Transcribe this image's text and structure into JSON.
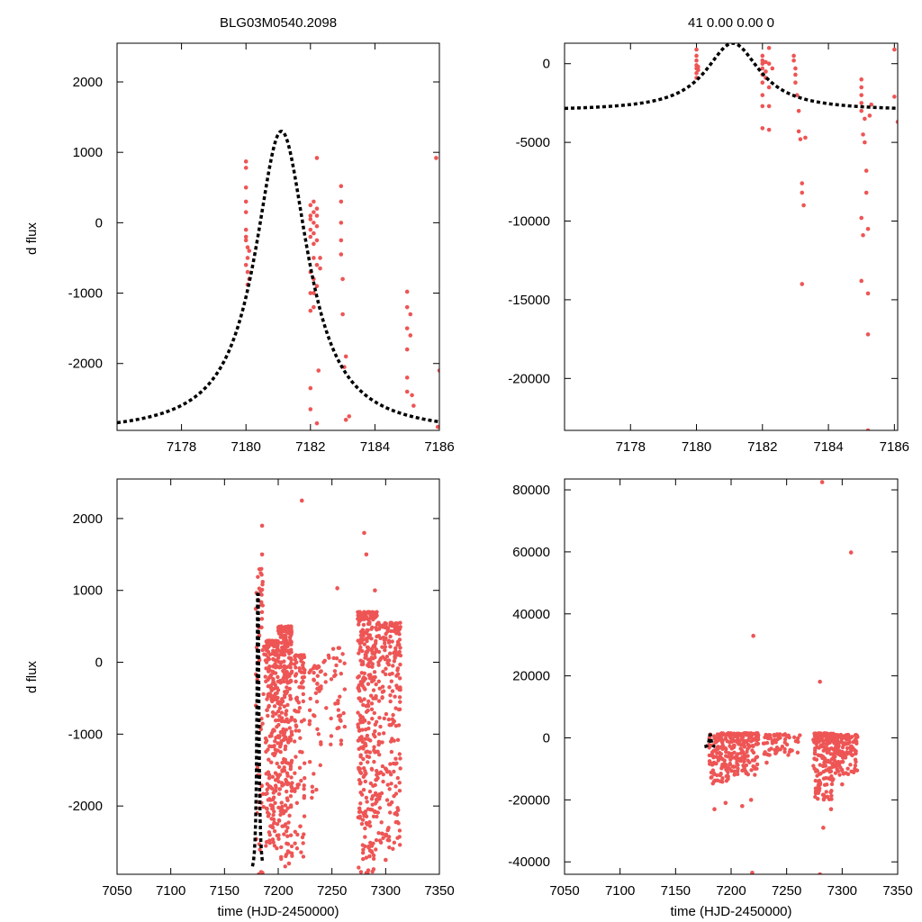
{
  "figure_title": "BLG03M0540.2098",
  "fit_summary": "41  0.00  0.00  0",
  "colors": {
    "data": "#ee5555",
    "model": "#000000",
    "axes": "#000000",
    "background": "#ffffff"
  },
  "model": {
    "type": "point-lens",
    "t0": 7181.1,
    "peak": 1300,
    "baseline": -3000,
    "tE": 1.0
  },
  "chart_data": [
    {
      "id": "top-left",
      "type": "scatter",
      "title": "BLG03M0540.2098",
      "xlabel": "",
      "ylabel": "d flux",
      "xlim": [
        7176,
        7186
      ],
      "ylim": [
        -2950,
        2550
      ],
      "xticks": [
        7178,
        7180,
        7182,
        7184,
        7186
      ],
      "yticks": [
        -2000,
        -1000,
        0,
        1000,
        2000
      ],
      "series": [
        {
          "name": "data",
          "kind": "points",
          "points": [
            [
              7180.0,
              870
            ],
            [
              7180.0,
              780
            ],
            [
              7180.0,
              500
            ],
            [
              7180.0,
              300
            ],
            [
              7180.0,
              150
            ],
            [
              7180.0,
              -100
            ],
            [
              7180.0,
              -200
            ],
            [
              7180.0,
              -250
            ],
            [
              7180.0,
              -600
            ],
            [
              7180.05,
              -880
            ],
            [
              7180.05,
              -350
            ],
            [
              7180.05,
              -500
            ],
            [
              7180.05,
              -700
            ],
            [
              7180.1,
              -400
            ],
            [
              7180.1,
              -800
            ],
            [
              7182.0,
              250
            ],
            [
              7182.0,
              100
            ],
            [
              7182.0,
              50
            ],
            [
              7182.0,
              -100
            ],
            [
              7182.0,
              -200
            ],
            [
              7182.0,
              -700
            ],
            [
              7182.0,
              -1000
            ],
            [
              7182.0,
              -1250
            ],
            [
              7182.0,
              -2350
            ],
            [
              7182.0,
              -2650
            ],
            [
              7182.1,
              300
            ],
            [
              7182.1,
              150
            ],
            [
              7182.1,
              0
            ],
            [
              7182.1,
              -150
            ],
            [
              7182.1,
              -300
            ],
            [
              7182.1,
              -500
            ],
            [
              7182.1,
              -800
            ],
            [
              7182.1,
              -1000
            ],
            [
              7182.1,
              -1200
            ],
            [
              7182.2,
              200
            ],
            [
              7182.2,
              100
            ],
            [
              7182.2,
              -50
            ],
            [
              7182.2,
              -250
            ],
            [
              7182.2,
              -600
            ],
            [
              7182.2,
              -900
            ],
            [
              7182.2,
              920
            ],
            [
              7182.2,
              -2850
            ],
            [
              7182.25,
              -2100
            ],
            [
              7182.3,
              -500
            ],
            [
              7182.3,
              -650
            ],
            [
              7182.95,
              520
            ],
            [
              7182.95,
              300
            ],
            [
              7182.95,
              0
            ],
            [
              7182.95,
              -250
            ],
            [
              7182.95,
              -450
            ],
            [
              7183.0,
              -800
            ],
            [
              7183.0,
              -1300
            ],
            [
              7183.05,
              -2050
            ],
            [
              7183.1,
              -1900
            ],
            [
              7183.1,
              -2800
            ],
            [
              7183.2,
              -2750
            ],
            [
              7185.0,
              -980
            ],
            [
              7185.0,
              -1200
            ],
            [
              7185.0,
              -1500
            ],
            [
              7185.0,
              -1800
            ],
            [
              7185.0,
              -2200
            ],
            [
              7185.0,
              -2400
            ],
            [
              7185.1,
              -1300
            ],
            [
              7185.1,
              -1600
            ],
            [
              7185.15,
              -2450
            ],
            [
              7185.2,
              -2600
            ],
            [
              7185.9,
              920
            ],
            [
              7186.0,
              -2100
            ],
            [
              7185.95,
              -2900
            ]
          ]
        },
        {
          "name": "model",
          "kind": "curve"
        }
      ]
    },
    {
      "id": "top-right",
      "type": "scatter",
      "title": "41  0.00  0.00  0",
      "xlabel": "",
      "ylabel": "",
      "xlim": [
        7176,
        7186.1
      ],
      "ylim": [
        -23300,
        1300
      ],
      "xticks": [
        7178,
        7180,
        7182,
        7184,
        7186
      ],
      "yticks": [
        -20000,
        -15000,
        -10000,
        -5000,
        0
      ],
      "series": [
        {
          "name": "data",
          "kind": "points",
          "points": [
            [
              7180.0,
              900
            ],
            [
              7180.0,
              500
            ],
            [
              7180.0,
              200
            ],
            [
              7180.0,
              -100
            ],
            [
              7180.0,
              -300
            ],
            [
              7180.0,
              -600
            ],
            [
              7180.0,
              -900
            ],
            [
              7180.05,
              -200
            ],
            [
              7180.05,
              -400
            ],
            [
              7182.0,
              500
            ],
            [
              7182.0,
              200
            ],
            [
              7182.0,
              0
            ],
            [
              7182.0,
              -300
            ],
            [
              7182.0,
              -700
            ],
            [
              7182.0,
              -1200
            ],
            [
              7182.0,
              -2000
            ],
            [
              7182.0,
              -2700
            ],
            [
              7182.0,
              -4100
            ],
            [
              7182.1,
              100
            ],
            [
              7182.1,
              -500
            ],
            [
              7182.1,
              -900
            ],
            [
              7182.2,
              1000
            ],
            [
              7182.2,
              0
            ],
            [
              7182.2,
              -1500
            ],
            [
              7182.2,
              -2700
            ],
            [
              7182.2,
              -4200
            ],
            [
              7182.3,
              -300
            ],
            [
              7182.95,
              500
            ],
            [
              7182.95,
              200
            ],
            [
              7183.0,
              -300
            ],
            [
              7183.0,
              -700
            ],
            [
              7183.0,
              -1200
            ],
            [
              7183.05,
              -2000
            ],
            [
              7183.1,
              -3000
            ],
            [
              7183.1,
              -4300
            ],
            [
              7183.15,
              -4800
            ],
            [
              7183.2,
              -7600
            ],
            [
              7183.2,
              -8200
            ],
            [
              7183.25,
              -9000
            ],
            [
              7183.2,
              -14000
            ],
            [
              7183.3,
              -4700
            ],
            [
              7185.0,
              -1000
            ],
            [
              7185.0,
              -1500
            ],
            [
              7185.0,
              -2000
            ],
            [
              7185.0,
              -2500
            ],
            [
              7185.0,
              -3000
            ],
            [
              7185.05,
              -4500
            ],
            [
              7185.0,
              -9800
            ],
            [
              7185.05,
              -10900
            ],
            [
              7185.0,
              -13800
            ],
            [
              7185.1,
              -3500
            ],
            [
              7185.1,
              -5000
            ],
            [
              7185.15,
              -6800
            ],
            [
              7185.15,
              -8200
            ],
            [
              7185.2,
              -10500
            ],
            [
              7185.2,
              -14600
            ],
            [
              7185.2,
              -17200
            ],
            [
              7185.2,
              -23300
            ],
            [
              7185.25,
              -3300
            ],
            [
              7185.3,
              -2600
            ],
            [
              7186.0,
              900
            ],
            [
              7186.0,
              -2100
            ],
            [
              7186.1,
              -3700
            ]
          ]
        },
        {
          "name": "model",
          "kind": "curve"
        }
      ]
    },
    {
      "id": "bottom-left",
      "type": "scatter",
      "title": "",
      "xlabel": "time (HJD-2450000)",
      "ylabel": "d flux",
      "xlim": [
        7050,
        7350
      ],
      "ylim": [
        -2950,
        2550
      ],
      "xticks": [
        7050,
        7100,
        7150,
        7200,
        7250,
        7300,
        7350
      ],
      "yticks": [
        -2000,
        -1000,
        0,
        1000,
        2000
      ],
      "series": [
        {
          "name": "data",
          "kind": "points",
          "points": [
            [
              7185,
              1900
            ],
            [
              7185,
              1500
            ],
            [
              7222,
              2250
            ],
            [
              7280,
              1800
            ],
            [
              7282,
              1500
            ],
            [
              7255,
              1030
            ],
            [
              7290,
              1000
            ],
            [
              7182,
              -2950
            ],
            [
              7195,
              -2300
            ],
            [
              7210,
              -2800
            ],
            [
              7232,
              -1800
            ],
            [
              7285,
              -2700
            ],
            [
              7300,
              -2750
            ]
          ]
        },
        {
          "name": "model",
          "kind": "curve"
        }
      ],
      "clusters": [
        {
          "xmin": 7179,
          "xmax": 7187,
          "ymin": -2950,
          "ymax": 1300,
          "n": 60
        },
        {
          "xmin": 7188,
          "xmax": 7200,
          "ymin": -2600,
          "ymax": 300,
          "n": 220
        },
        {
          "xmin": 7200,
          "xmax": 7213,
          "ymin": -2900,
          "ymax": 500,
          "n": 280
        },
        {
          "xmin": 7215,
          "xmax": 7225,
          "ymin": -2800,
          "ymax": 100,
          "n": 90
        },
        {
          "xmin": 7228,
          "xmax": 7240,
          "ymin": -1900,
          "ymax": -50,
          "n": 40
        },
        {
          "xmin": 7242,
          "xmax": 7262,
          "ymin": -1400,
          "ymax": 200,
          "n": 40
        },
        {
          "xmin": 7274,
          "xmax": 7292,
          "ymin": -2950,
          "ymax": 700,
          "n": 330
        },
        {
          "xmin": 7292,
          "xmax": 7314,
          "ymin": -2600,
          "ymax": 550,
          "n": 230
        }
      ]
    },
    {
      "id": "bottom-right",
      "type": "scatter",
      "title": "",
      "xlabel": "time (HJD-2450000)",
      "ylabel": "",
      "xlim": [
        7050,
        7350
      ],
      "ylim": [
        -44000,
        83500
      ],
      "xticks": [
        7050,
        7100,
        7150,
        7200,
        7250,
        7300,
        7350
      ],
      "yticks": [
        -40000,
        -20000,
        0,
        20000,
        40000,
        60000,
        80000
      ],
      "series": [
        {
          "name": "data",
          "kind": "points",
          "points": [
            [
              7282,
              82500
            ],
            [
              7308,
              59800
            ],
            [
              7280,
              18100
            ],
            [
              7220,
              32900
            ],
            [
              7219,
              -43500
            ],
            [
              7283,
              -29000
            ],
            [
              7280,
              -44000
            ],
            [
              7185,
              -23000
            ],
            [
              7195,
              -21000
            ],
            [
              7210,
              -22000
            ],
            [
              7218,
              -20000
            ],
            [
              7232,
              -8000
            ],
            [
              7240,
              -5000
            ],
            [
              7290,
              -23000
            ],
            [
              7300,
              -15000
            ]
          ]
        },
        {
          "name": "model",
          "kind": "curve"
        }
      ],
      "clusters": [
        {
          "xmin": 7180,
          "xmax": 7198,
          "ymin": -15000,
          "ymax": 1500,
          "n": 120
        },
        {
          "xmin": 7198,
          "xmax": 7225,
          "ymin": -12000,
          "ymax": 1500,
          "n": 160
        },
        {
          "xmin": 7228,
          "xmax": 7262,
          "ymin": -6000,
          "ymax": 1200,
          "n": 60
        },
        {
          "xmin": 7274,
          "xmax": 7292,
          "ymin": -20000,
          "ymax": 1500,
          "n": 180
        },
        {
          "xmin": 7292,
          "xmax": 7314,
          "ymin": -12000,
          "ymax": 1000,
          "n": 140
        }
      ]
    }
  ]
}
